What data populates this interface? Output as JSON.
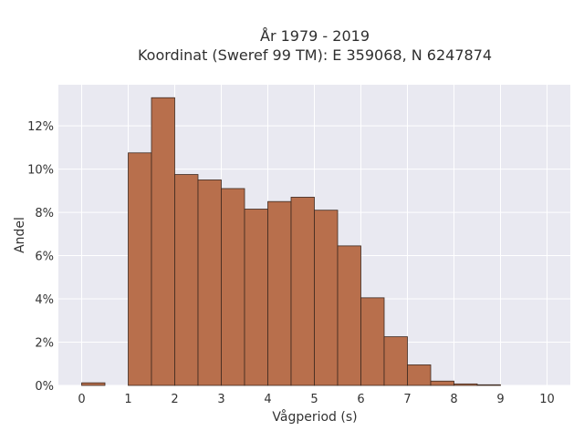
{
  "chart_data": {
    "type": "bar",
    "title_line1": "År 1979 - 2019",
    "title_line2": "Koordinat (Sweref 99 TM): E 359068, N 6247874",
    "xlabel": "Vågperiod (s)",
    "ylabel": "Andel",
    "xlim": [
      -0.5,
      10.5
    ],
    "ylim": [
      0,
      13.9
    ],
    "xticks": [
      0,
      1,
      2,
      3,
      4,
      5,
      6,
      7,
      8,
      9,
      10
    ],
    "xtick_labels": [
      "0",
      "1",
      "2",
      "3",
      "4",
      "5",
      "6",
      "7",
      "8",
      "9",
      "10"
    ],
    "yticks": [
      0,
      2,
      4,
      6,
      8,
      10,
      12
    ],
    "ytick_labels": [
      "0%",
      "2%",
      "4%",
      "6%",
      "8%",
      "10%",
      "12%"
    ],
    "bin_width": 0.5,
    "bins_start": [
      0,
      1,
      1.5,
      2,
      2.5,
      3,
      3.5,
      4,
      4.5,
      5,
      5.5,
      6,
      6.5,
      7,
      7.5,
      8,
      8.5
    ],
    "values": [
      0.12,
      10.75,
      13.3,
      9.75,
      9.5,
      9.1,
      8.15,
      8.5,
      8.7,
      8.1,
      6.45,
      4.05,
      2.25,
      0.95,
      0.2,
      0.07,
      0.03
    ],
    "grid": true,
    "colors": {
      "background": "#e9e9f1",
      "grid": "#ffffff",
      "bar_fill": "#b86f4c",
      "bar_stroke": "#3e2a20"
    }
  }
}
